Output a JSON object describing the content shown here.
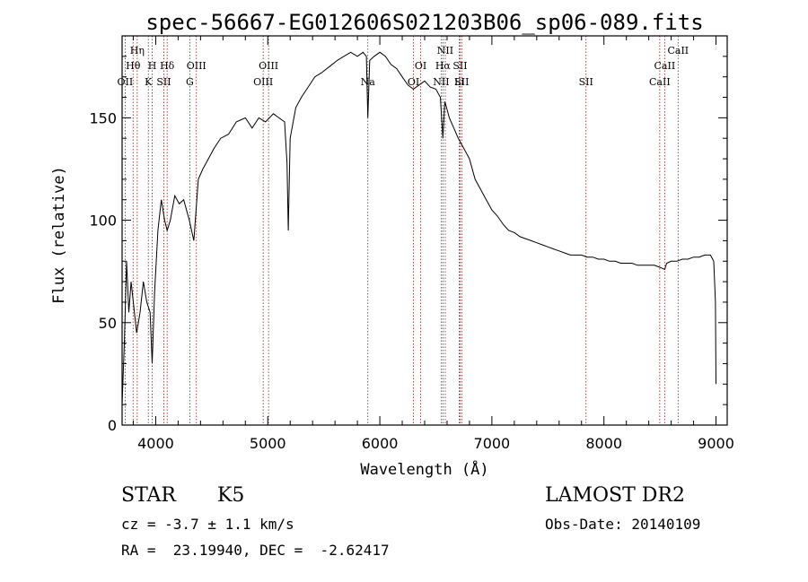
{
  "chart_data": {
    "type": "line",
    "title": "spec-56667-EG012606S021203B06_sp06-089.fits",
    "xlabel": "Wavelength (Å)",
    "ylabel": "Flux (relative)",
    "xlim": [
      3700,
      9100
    ],
    "ylim": [
      0,
      190
    ],
    "xticks": [
      4000,
      5000,
      6000,
      7000,
      8000,
      9000
    ],
    "yticks": [
      0,
      50,
      100,
      150
    ],
    "grid": false,
    "line_color": "#000000",
    "marker_color": "#8b1a1a",
    "series": [
      {
        "x": [
          3700,
          3720,
          3740,
          3760,
          3780,
          3800,
          3830,
          3860,
          3890,
          3920,
          3950,
          3968,
          3990,
          4020,
          4050,
          4080,
          4102,
          4130,
          4170,
          4210,
          4250,
          4300,
          4340,
          4380,
          4420,
          4470,
          4520,
          4580,
          4650,
          4720,
          4800,
          4860,
          4920,
          4980,
          5050,
          5100,
          5150,
          5172,
          5183,
          5200,
          5250,
          5300,
          5360,
          5420,
          5480,
          5550,
          5620,
          5680,
          5740,
          5800,
          5850,
          5880,
          5893,
          5910,
          5950,
          6000,
          6050,
          6100,
          6150,
          6200,
          6250,
          6300,
          6350,
          6400,
          6450,
          6500,
          6540,
          6563,
          6580,
          6620,
          6660,
          6700,
          6750,
          6800,
          6850,
          6900,
          6950,
          7000,
          7050,
          7100,
          7150,
          7200,
          7250,
          7300,
          7350,
          7400,
          7450,
          7500,
          7550,
          7600,
          7650,
          7700,
          7750,
          7800,
          7850,
          7900,
          7950,
          8000,
          8050,
          8100,
          8150,
          8200,
          8250,
          8300,
          8350,
          8400,
          8450,
          8500,
          8542,
          8560,
          8600,
          8650,
          8700,
          8750,
          8800,
          8850,
          8900,
          8950,
          8980,
          8995,
          9000
        ],
        "y": [
          10,
          40,
          80,
          55,
          70,
          60,
          45,
          55,
          70,
          60,
          55,
          30,
          65,
          95,
          110,
          100,
          95,
          100,
          112,
          108,
          110,
          100,
          90,
          120,
          125,
          130,
          135,
          140,
          142,
          148,
          150,
          145,
          150,
          148,
          152,
          150,
          148,
          128,
          95,
          140,
          155,
          160,
          165,
          170,
          172,
          175,
          178,
          180,
          182,
          180,
          182,
          180,
          150,
          178,
          180,
          182,
          180,
          176,
          174,
          170,
          166,
          164,
          166,
          168,
          165,
          164,
          160,
          140,
          158,
          150,
          145,
          140,
          135,
          130,
          120,
          115,
          110,
          105,
          102,
          98,
          95,
          94,
          92,
          91,
          90,
          89,
          88,
          87,
          86,
          85,
          84,
          83,
          83,
          83,
          82,
          82,
          81,
          81,
          80,
          80,
          79,
          79,
          79,
          78,
          78,
          78,
          78,
          77,
          76,
          79,
          80,
          80,
          81,
          81,
          82,
          82,
          83,
          83,
          80,
          60,
          20
        ]
      }
    ],
    "lines": [
      {
        "label": "OII",
        "wavelength": 3727
      },
      {
        "label": "Hθ",
        "wavelength": 3798
      },
      {
        "label": "Hη",
        "wavelength": 3835
      },
      {
        "label": "K",
        "wavelength": 3934
      },
      {
        "label": "H",
        "wavelength": 3969
      },
      {
        "label": "SII",
        "wavelength": 4072
      },
      {
        "label": "Hδ",
        "wavelength": 4102
      },
      {
        "label": "G",
        "wavelength": 4304
      },
      {
        "label": "OIII",
        "wavelength": 4363
      },
      {
        "label": "OIII",
        "wavelength": 4959
      },
      {
        "label": "OIII",
        "wavelength": 5007
      },
      {
        "label": "Na",
        "wavelength": 5893
      },
      {
        "label": "OI",
        "wavelength": 6300
      },
      {
        "label": "OI",
        "wavelength": 6364
      },
      {
        "label": "NII",
        "wavelength": 6548
      },
      {
        "label": "Hα",
        "wavelength": 6563
      },
      {
        "label": "NII",
        "wavelength": 6584
      },
      {
        "label": "Li",
        "wavelength": 6708
      },
      {
        "label": "SII",
        "wavelength": 6716
      },
      {
        "label": "SII",
        "wavelength": 6731
      },
      {
        "label": "SII",
        "wavelength": 7840
      },
      {
        "label": "CaII",
        "wavelength": 8498
      },
      {
        "label": "CaII",
        "wavelength": 8542
      },
      {
        "label": "CaII",
        "wavelength": 8662
      }
    ]
  },
  "info": {
    "class_type": "STAR",
    "subclass": "K5",
    "survey": "LAMOST DR2",
    "cz": "cz = -3.7 ± 1.1 km/s",
    "obs_date": "Obs-Date: 20140109",
    "coords": "RA =  23.19940, DEC =  -2.62417"
  }
}
